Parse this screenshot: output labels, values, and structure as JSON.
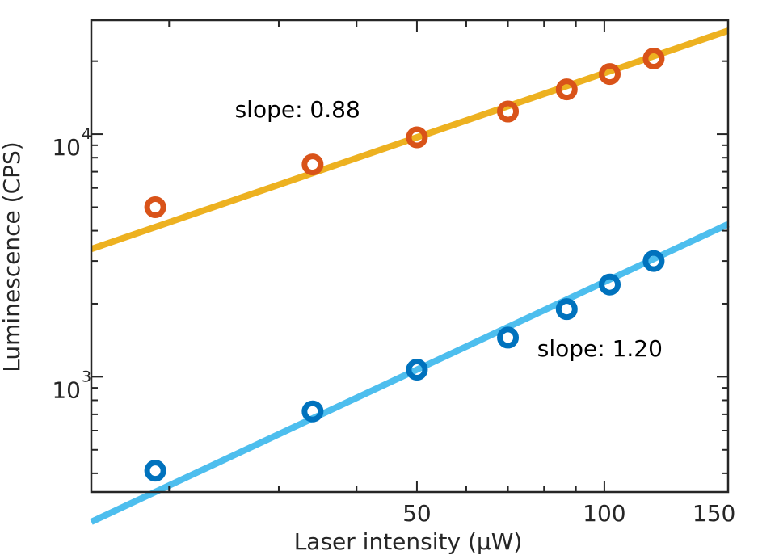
{
  "chart_data": {
    "type": "scatter",
    "xscale": "log",
    "yscale": "log",
    "xlim": [
      15,
      158
    ],
    "ylim": [
      335,
      29500
    ],
    "xlabel": "Laser intensity (µW)",
    "ylabel": "Luminescence (CPS)",
    "x_ticks": [
      50,
      100,
      150
    ],
    "x_ticklabels": [
      "50",
      "100",
      "150"
    ],
    "y_ticks": [
      {
        "value": 1000,
        "base": "10",
        "exp": "3"
      },
      {
        "value": 10000,
        "base": "10",
        "exp": "4"
      }
    ],
    "grid": false,
    "box": true,
    "series": [
      {
        "marker_color": "#D95319",
        "fit_color": "#EDB120",
        "x": [
          19,
          34,
          50,
          70,
          87,
          102,
          120
        ],
        "y": [
          5000,
          7500,
          9700,
          12400,
          15300,
          17700,
          20500
        ],
        "fit": {
          "slope": 0.88,
          "x0": 50,
          "y0": 9700
        }
      },
      {
        "marker_color": "#0072BD",
        "fit_color": "#4DBEEE",
        "x": [
          19,
          34,
          50,
          70,
          87,
          102,
          120
        ],
        "y": [
          410,
          720,
          1070,
          1450,
          1900,
          2400,
          3000
        ],
        "fit": {
          "slope": 1.2,
          "x0": 50,
          "y0": 1070
        }
      }
    ],
    "annotations": [
      {
        "text": "slope: 0.88",
        "x": 25.5,
        "y": 12500
      },
      {
        "text": "slope: 1.20",
        "x": 78,
        "y": 1290
      }
    ]
  }
}
